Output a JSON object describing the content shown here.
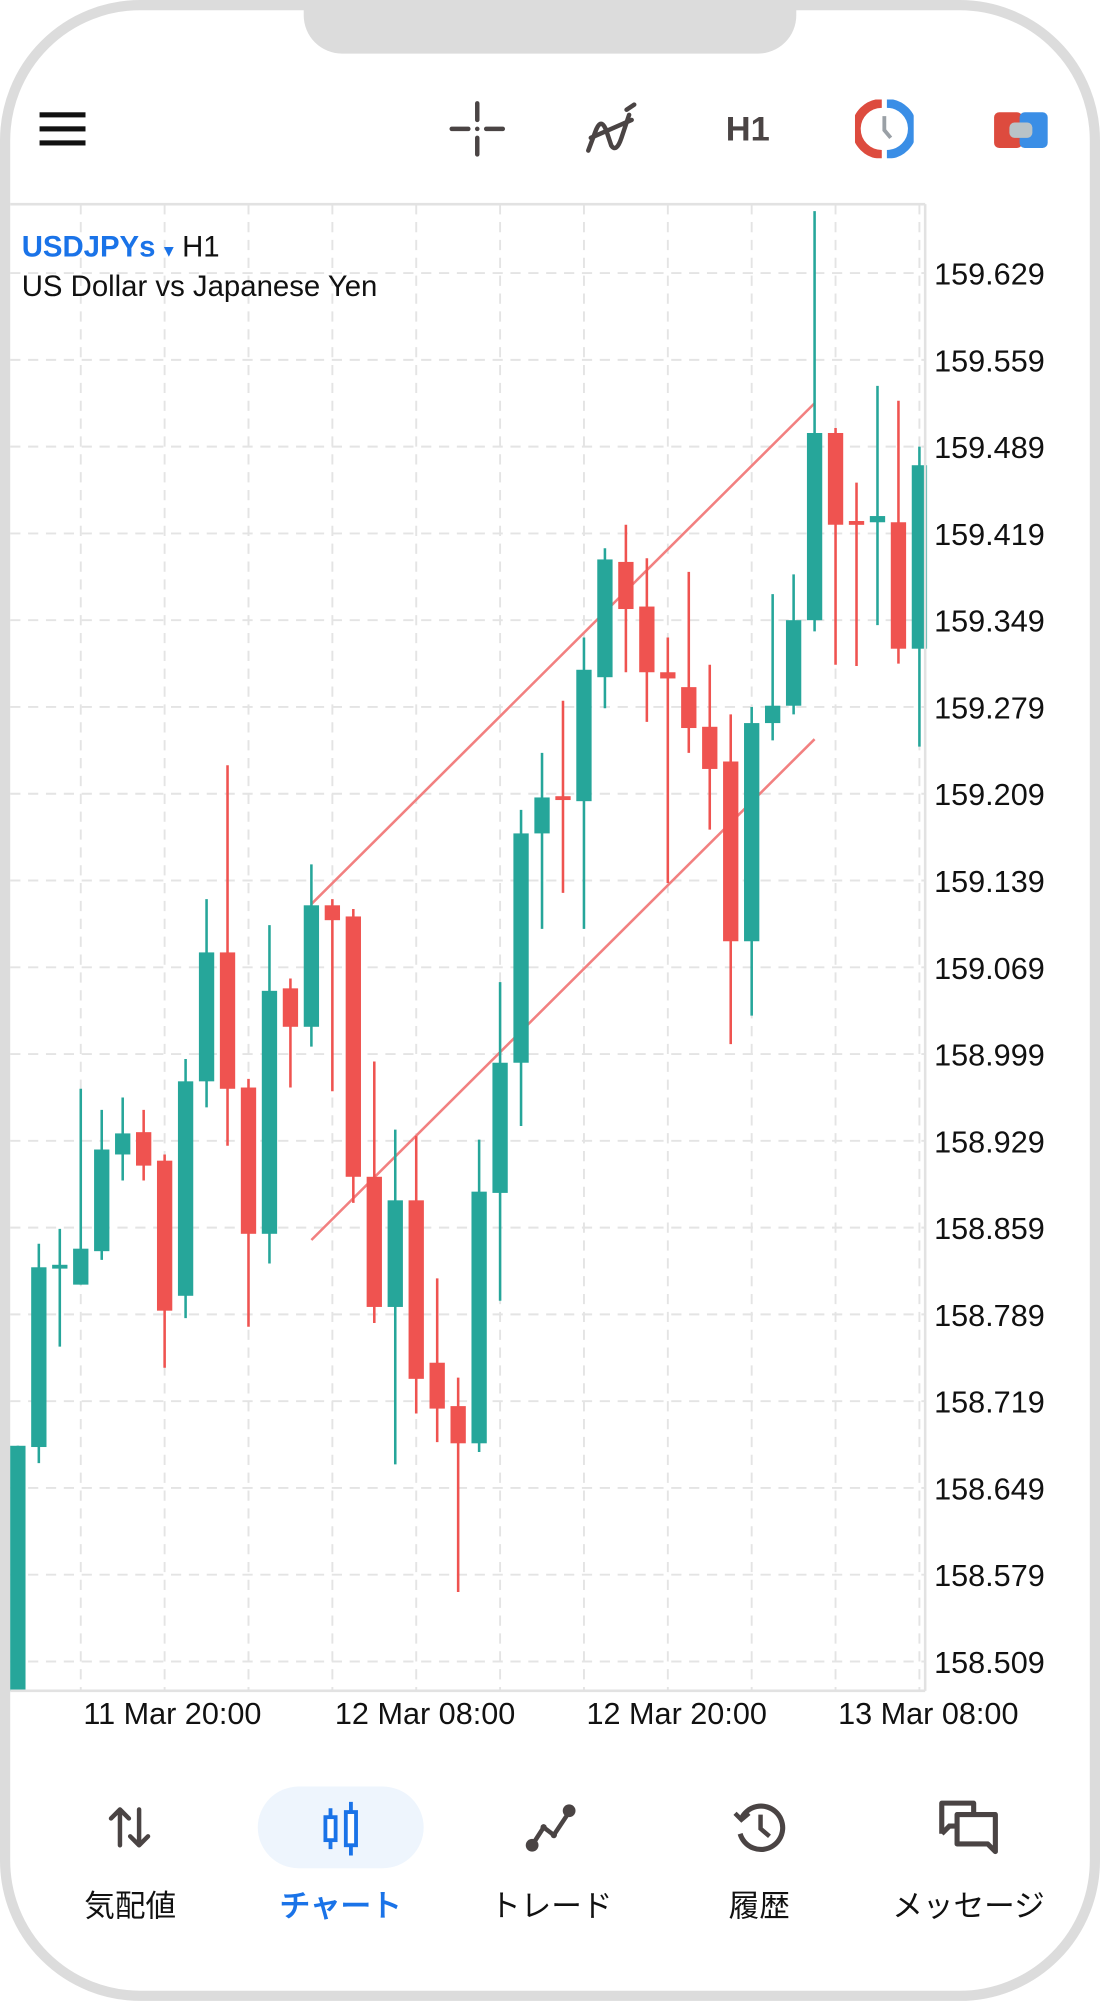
{
  "header": {
    "timeframe": "H1",
    "icons": [
      "menu-icon",
      "crosshair-icon",
      "indicators-icon",
      "timeframe-button",
      "clock-icon",
      "one-click-trading-icon"
    ]
  },
  "symbol": {
    "name": "USDJPYs",
    "timeframe": "H1",
    "description": "US Dollar vs Japanese Yen"
  },
  "colors": {
    "bull": "#26a69a",
    "bear": "#ef5350",
    "trendline": "#f28080",
    "accent": "#1a73e8"
  },
  "chart_data": {
    "type": "candlestick",
    "y_ticks": [
      "159.629",
      "159.559",
      "159.489",
      "159.419",
      "159.349",
      "159.279",
      "159.209",
      "159.139",
      "159.069",
      "158.999",
      "158.929",
      "158.859",
      "158.789",
      "158.719",
      "158.649",
      "158.579",
      "158.509"
    ],
    "x_labels": [
      {
        "index": 3,
        "label": "11 Mar 20:00"
      },
      {
        "index": 15,
        "label": "12 Mar 08:00"
      },
      {
        "index": 27,
        "label": "12 Mar 20:00"
      },
      {
        "index": 39,
        "label": "13 Mar 08:00"
      }
    ],
    "candles": [
      [
        158.485,
        158.683,
        158.683,
        158.485
      ],
      [
        158.682,
        158.827,
        158.846,
        158.669
      ],
      [
        158.826,
        158.829,
        158.858,
        158.763
      ],
      [
        158.813,
        158.842,
        158.971,
        158.813
      ],
      [
        158.84,
        158.922,
        158.954,
        158.833
      ],
      [
        158.918,
        158.935,
        158.964,
        158.897
      ],
      [
        158.936,
        158.909,
        158.954,
        158.897
      ],
      [
        158.913,
        158.792,
        158.918,
        158.746
      ],
      [
        158.804,
        158.977,
        158.995,
        158.786
      ],
      [
        158.977,
        159.081,
        159.124,
        158.956
      ],
      [
        159.081,
        158.971,
        159.232,
        158.925
      ],
      [
        158.972,
        158.854,
        158.979,
        158.779
      ],
      [
        158.854,
        159.05,
        159.103,
        158.83
      ],
      [
        159.052,
        159.021,
        159.06,
        158.972
      ],
      [
        159.021,
        159.119,
        159.152,
        159.005
      ],
      [
        159.119,
        159.107,
        159.124,
        158.969
      ],
      [
        159.11,
        158.9,
        159.116,
        158.879
      ],
      [
        158.9,
        158.795,
        158.993,
        158.782
      ],
      [
        158.795,
        158.881,
        158.938,
        158.668
      ],
      [
        158.881,
        158.737,
        158.933,
        158.709
      ],
      [
        158.75,
        158.713,
        158.818,
        158.686
      ],
      [
        158.715,
        158.685,
        158.738,
        158.565
      ],
      [
        158.685,
        158.888,
        158.93,
        158.678
      ],
      [
        158.887,
        158.992,
        159.057,
        158.8
      ],
      [
        158.992,
        159.177,
        159.196,
        158.941
      ],
      [
        159.177,
        159.206,
        159.242,
        159.1
      ],
      [
        159.207,
        159.205,
        159.284,
        159.129
      ],
      [
        159.203,
        159.309,
        159.335,
        159.1
      ],
      [
        159.303,
        159.398,
        159.407,
        159.278
      ],
      [
        159.396,
        159.358,
        159.426,
        159.307
      ],
      [
        159.36,
        159.307,
        159.399,
        159.267
      ],
      [
        159.307,
        159.302,
        159.335,
        159.137
      ],
      [
        159.295,
        159.262,
        159.388,
        159.242
      ],
      [
        159.263,
        159.229,
        159.313,
        159.18
      ],
      [
        159.235,
        159.09,
        159.273,
        159.007
      ],
      [
        159.09,
        159.266,
        159.279,
        159.03
      ],
      [
        159.266,
        159.28,
        159.37,
        159.252
      ],
      [
        159.28,
        159.349,
        159.386,
        159.273
      ],
      [
        159.349,
        159.5,
        159.679,
        159.34
      ],
      [
        159.5,
        159.426,
        159.504,
        159.313
      ],
      [
        159.429,
        159.426,
        159.46,
        159.312
      ],
      [
        159.428,
        159.433,
        159.538,
        159.345
      ],
      [
        159.428,
        159.326,
        159.526,
        159.314
      ],
      [
        159.326,
        159.474,
        159.489,
        159.247
      ]
    ],
    "candle_format": [
      "open",
      "close",
      "high",
      "low"
    ],
    "trendlines": [
      {
        "name": "upper-channel",
        "from": {
          "index": 14,
          "price": 159.12
        },
        "to": {
          "index": 38,
          "price": 159.524
        }
      },
      {
        "name": "lower-channel",
        "from": {
          "index": 14,
          "price": 158.849
        },
        "to": {
          "index": 38,
          "price": 159.253
        }
      }
    ]
  },
  "bottom_nav": [
    {
      "label": "気配値",
      "icon": "quotes-icon",
      "active": false
    },
    {
      "label": "チャート",
      "icon": "chart-icon",
      "active": true
    },
    {
      "label": "トレード",
      "icon": "trade-icon",
      "active": false
    },
    {
      "label": "履歴",
      "icon": "history-icon",
      "active": false
    },
    {
      "label": "メッセージ",
      "icon": "messages-icon",
      "active": false
    }
  ]
}
